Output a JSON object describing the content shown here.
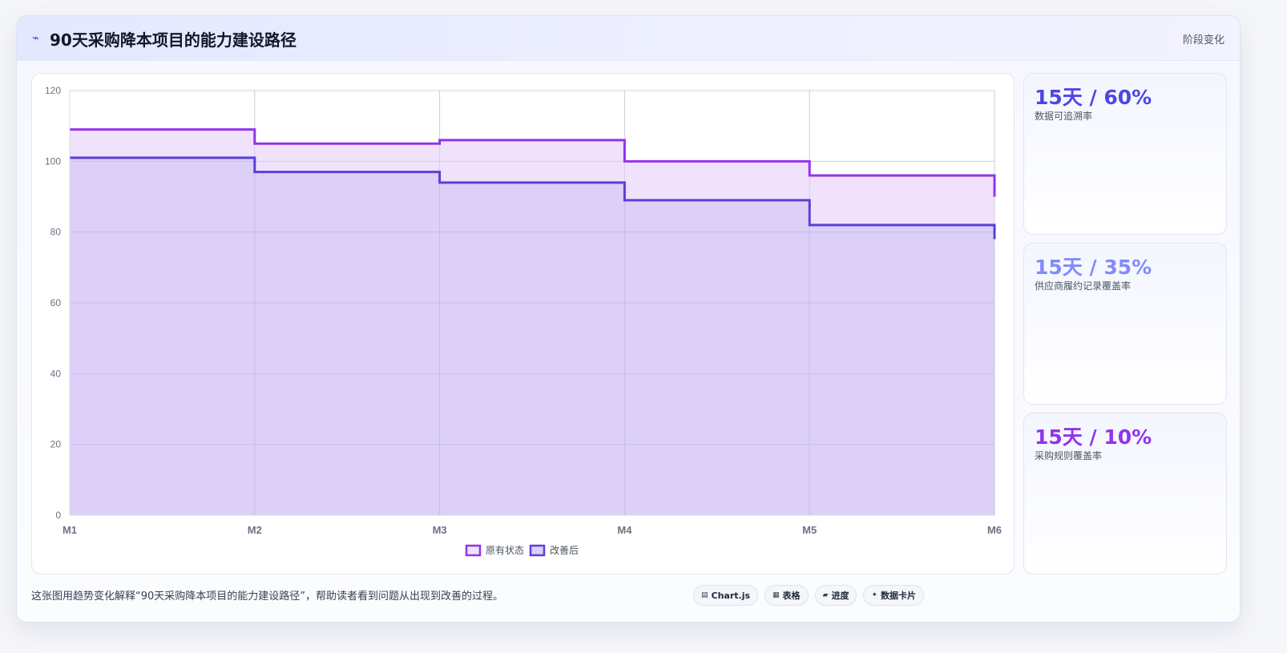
{
  "header": {
    "icon": "trend-icon",
    "title": "90天采购降本项目的能力建设路径",
    "tag": "阶段变化"
  },
  "kpis": [
    {
      "value": "15天 / 60%",
      "label": "数据可追溯率",
      "color": "#4f46e5"
    },
    {
      "value": "15天 / 35%",
      "label": "供应商履约记录覆盖率",
      "color": "#818cf8"
    },
    {
      "value": "15天 / 10%",
      "label": "采购规则覆盖率",
      "color": "#9333ea"
    }
  ],
  "caption": "这张图用趋势变化解释“90天采购降本项目的能力建设路径”，帮助读者看到问题从出现到改善的过程。",
  "chips": [
    {
      "icon": "chart-icon",
      "label": "Chart.js"
    },
    {
      "icon": "table-icon",
      "label": "表格"
    },
    {
      "icon": "progress-icon",
      "label": "进度"
    },
    {
      "icon": "card-icon",
      "label": "数据卡片"
    }
  ],
  "chart_data": {
    "type": "area",
    "step": true,
    "categories": [
      "M1",
      "M2",
      "M3",
      "M4",
      "M5",
      "M6"
    ],
    "ylim": [
      0,
      120
    ],
    "yticks": [
      0,
      20,
      40,
      60,
      80,
      100,
      120
    ],
    "grid": true,
    "legend_position": "bottom",
    "series": [
      {
        "name": "原有状态",
        "values": [
          109,
          105,
          106,
          100,
          96,
          90
        ],
        "color": "#9333ea",
        "fill": "#f0e2fa"
      },
      {
        "name": "改善后",
        "values": [
          101,
          97,
          94,
          89,
          82,
          78
        ],
        "color": "#5b3fd6",
        "fill": "#dccff8"
      }
    ]
  }
}
